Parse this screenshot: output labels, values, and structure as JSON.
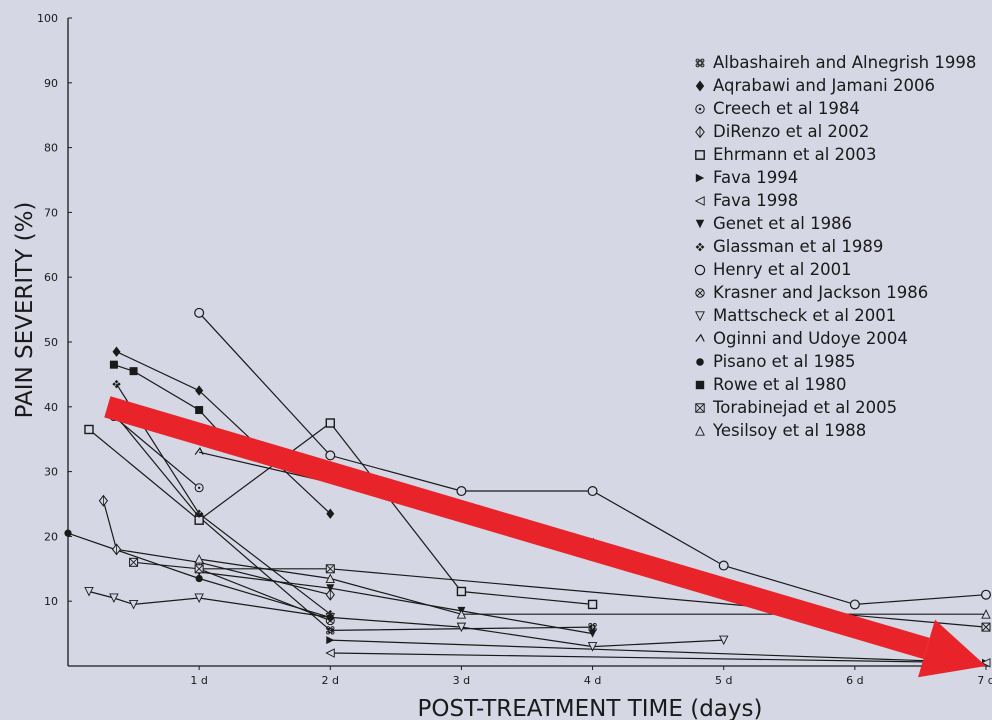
{
  "chart_data": {
    "type": "line",
    "xlabel": "POST-TREATMENT TIME (days)",
    "ylabel": "PAIN SEVERITY (%)",
    "xlim": [
      0,
      7
    ],
    "ylim": [
      0,
      100
    ],
    "x_ticks": [
      {
        "value": 1,
        "label": "1 d"
      },
      {
        "value": 2,
        "label": "2 d"
      },
      {
        "value": 3,
        "label": "3 d"
      },
      {
        "value": 4,
        "label": "4 d"
      },
      {
        "value": 5,
        "label": "5 d"
      },
      {
        "value": 6,
        "label": "6 d"
      },
      {
        "value": 7,
        "label": "7 d"
      }
    ],
    "y_ticks": [
      {
        "value": 10,
        "label": "10"
      },
      {
        "value": 20,
        "label": "20"
      },
      {
        "value": 30,
        "label": "30"
      },
      {
        "value": 40,
        "label": "40"
      },
      {
        "value": 50,
        "label": "50"
      },
      {
        "value": 60,
        "label": "60"
      },
      {
        "value": 70,
        "label": "70"
      },
      {
        "value": 80,
        "label": "80"
      },
      {
        "value": 90,
        "label": "90"
      },
      {
        "value": 100,
        "label": "100"
      }
    ],
    "legend_position": "top-right",
    "grid": false,
    "series": [
      {
        "name": "Albashaireh and Alnegrish 1998",
        "marker": "command",
        "points": [
          [
            0.37,
            38.5
          ],
          [
            1,
            23
          ],
          [
            2,
            5.5
          ],
          [
            4,
            6
          ]
        ]
      },
      {
        "name": "Aqrabawi and Jamani 2006",
        "marker": "diamond-filled",
        "points": [
          [
            0.37,
            48.5
          ],
          [
            1,
            42.5
          ],
          [
            2,
            23.5
          ]
        ]
      },
      {
        "name": "Creech et al 1984",
        "marker": "circle-dot",
        "points": [
          [
            0.35,
            38.5
          ],
          [
            1,
            27.5
          ]
        ]
      },
      {
        "name": "DiRenzo et al 2002",
        "marker": "diamond-outline",
        "points": [
          [
            0.27,
            25.5
          ],
          [
            0.37,
            18
          ],
          [
            1,
            16
          ],
          [
            2,
            11
          ]
        ]
      },
      {
        "name": "Ehrmann et al 2003",
        "marker": "square-open",
        "points": [
          [
            0.16,
            36.5
          ],
          [
            1,
            22.5
          ],
          [
            2,
            37.5
          ],
          [
            3,
            11.5
          ],
          [
            4,
            9.5
          ]
        ]
      },
      {
        "name": "Fava 1994",
        "marker": "triangle-right-filled",
        "points": [
          [
            2,
            4
          ],
          [
            7,
            0.5
          ]
        ]
      },
      {
        "name": "Fava 1998",
        "marker": "triangle-left-open",
        "points": [
          [
            2,
            2
          ],
          [
            7,
            0.5
          ]
        ]
      },
      {
        "name": "Genet et al 1986",
        "marker": "triangle-down-filled",
        "points": [
          [
            1,
            14.5
          ],
          [
            2,
            12
          ],
          [
            3,
            8.5
          ],
          [
            4,
            5
          ]
        ]
      },
      {
        "name": "Glassman et al 1989",
        "marker": "plus-dots",
        "points": [
          [
            0.37,
            43.5
          ],
          [
            1,
            23.5
          ],
          [
            2,
            8
          ]
        ]
      },
      {
        "name": "Henry et al 2001",
        "marker": "circle-half",
        "points": [
          [
            1,
            54.5
          ],
          [
            2,
            32.5
          ],
          [
            3,
            27
          ],
          [
            4,
            27
          ],
          [
            5,
            15.5
          ],
          [
            6,
            9.5
          ],
          [
            7,
            11
          ]
        ]
      },
      {
        "name": "Krasner and Jackson 1986",
        "marker": "circle-x",
        "points": [
          [
            1,
            15
          ],
          [
            2,
            7
          ]
        ]
      },
      {
        "name": "Mattscheck et al 2001",
        "marker": "triangle-down-open",
        "points": [
          [
            0.16,
            11.5
          ],
          [
            0.35,
            10.5
          ],
          [
            0.5,
            9.5
          ],
          [
            1,
            10.5
          ],
          [
            2,
            7.5
          ],
          [
            3,
            6
          ],
          [
            4,
            3
          ],
          [
            5,
            4
          ]
        ]
      },
      {
        "name": "Oginni and Udoye 2004",
        "marker": "chevron-up",
        "points": [
          [
            1,
            33
          ],
          [
            4,
            19
          ]
        ]
      },
      {
        "name": "Pisano et al 1985",
        "marker": "circle-filled",
        "points": [
          [
            0,
            20.5
          ],
          [
            1,
            13.5
          ],
          [
            2,
            7.5
          ]
        ]
      },
      {
        "name": "Rowe et al 1980",
        "marker": "square-filled",
        "points": [
          [
            0.35,
            46.5
          ],
          [
            0.5,
            45.5
          ],
          [
            1,
            39.5
          ],
          [
            1.25,
            34
          ]
        ]
      },
      {
        "name": "Torabinejad et al 2005",
        "marker": "square-x",
        "points": [
          [
            0.5,
            16
          ],
          [
            1,
            15
          ],
          [
            2,
            15
          ],
          [
            7,
            6
          ]
        ]
      },
      {
        "name": "Yesilsoy et al 1988",
        "marker": "triangle-up-open",
        "points": [
          [
            1,
            16.5
          ],
          [
            2,
            13.5
          ],
          [
            3,
            8
          ],
          [
            7,
            8
          ]
        ]
      }
    ],
    "trend_arrow": {
      "color": "#e8242a",
      "from": [
        0.3,
        40
      ],
      "to": [
        7,
        0
      ]
    }
  }
}
